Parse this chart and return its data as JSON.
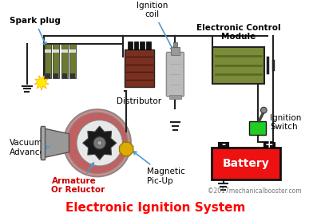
{
  "title": "Electronic Ignition System",
  "title_color": "#ff0000",
  "title_fontsize": 11,
  "bg_color": "#ffffff",
  "copyright": "©2017mechanicalbooster.com",
  "labels": {
    "spark_plug": "Spark plug",
    "distributor": "Distributor",
    "ignition_coil": "Ignition\ncoil",
    "ecm": "Electronic Control\nModule",
    "ignition_switch": "Ignition\nSwitch",
    "battery": "Battery",
    "vacuum_advance": "Vacuum\nAdvance",
    "armature": "Armature\nOr Reluctor",
    "magnetic_pickup": "Magnetic\nPic-Up"
  },
  "label_color": "#000000",
  "arrow_color": "#5599cc",
  "wire_color": "#222222",
  "battery_color": "#ee1111",
  "battery_text_color": "#ffffff",
  "ecm_color": "#7a8c3a",
  "ecm_stripe": "#5a6a20",
  "spark_plug_color": "#6b7c30",
  "distributor_color": "#7a3020",
  "distributor_stripe": "#4a1a08",
  "ignition_coil_color": "#bbbbbb",
  "ignition_coil_cap": "#999999",
  "ignition_switch_color": "#22cc22",
  "vacuum_body_color": "#e08888",
  "vacuum_ring_color": "#c06060",
  "vacuum_horn_color": "#999999",
  "gear_color": "#1a1a1a",
  "gear_hub_color": "#777777",
  "magnetic_color": "#ddaa00",
  "ground_color": "#222222"
}
